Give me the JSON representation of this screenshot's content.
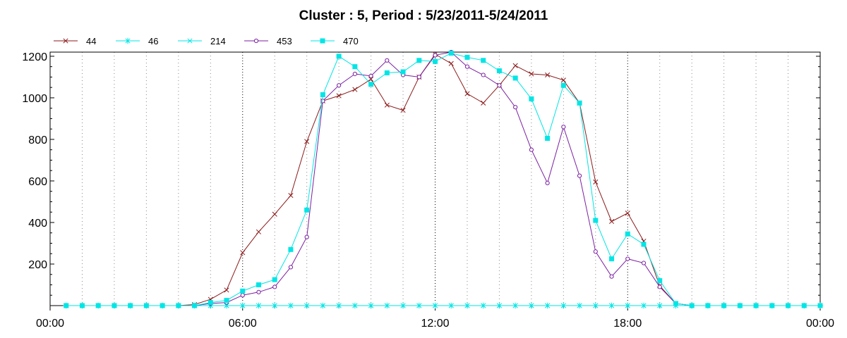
{
  "chart_data": {
    "type": "line",
    "title": "Cluster : 5, Period : 5/23/2011-5/24/2011",
    "xlabel": "",
    "ylabel": "",
    "xlim": [
      0,
      24
    ],
    "ylim": [
      0,
      1220
    ],
    "x_ticks": [
      {
        "value": 0,
        "label": "00:00"
      },
      {
        "value": 6,
        "label": "06:00"
      },
      {
        "value": 12,
        "label": "12:00"
      },
      {
        "value": 18,
        "label": "18:00"
      },
      {
        "value": 24,
        "label": "00:00"
      }
    ],
    "y_ticks": [
      200,
      400,
      600,
      800,
      1000,
      1200
    ],
    "grid": "vertical dotted lines",
    "legend_position": "top-left",
    "series": [
      {
        "name": "44",
        "color": "#8b1a1a",
        "marker": "x",
        "x": [
          0.5,
          1,
          1.5,
          2,
          2.5,
          3,
          3.5,
          4,
          4.5,
          5,
          5.5,
          6,
          6.5,
          7,
          7.5,
          8,
          8.5,
          9,
          9.5,
          10,
          10.5,
          11,
          11.5,
          12,
          12.5,
          13,
          13.5,
          14,
          14.5,
          15,
          15.5,
          16,
          16.5,
          17,
          17.5,
          18,
          18.5,
          19,
          19.5,
          20,
          20.5,
          21,
          21.5,
          22,
          22.5,
          23,
          23.5,
          24
        ],
        "y": [
          0,
          0,
          0,
          0,
          0,
          0,
          0,
          0,
          5,
          30,
          75,
          255,
          355,
          440,
          530,
          790,
          985,
          1010,
          1040,
          1090,
          965,
          940,
          1100,
          1210,
          1165,
          1020,
          975,
          1060,
          1155,
          1115,
          1110,
          1085,
          975,
          595,
          405,
          445,
          310,
          95,
          10,
          0,
          0,
          0,
          0,
          0,
          0,
          0,
          0,
          0
        ]
      },
      {
        "name": "46",
        "color": "#00e5e5",
        "marker": "star",
        "x": [
          0.5,
          1,
          1.5,
          2,
          2.5,
          3,
          3.5,
          4,
          4.5,
          5,
          5.5,
          6,
          6.5,
          7,
          7.5,
          8,
          8.5,
          9,
          9.5,
          10,
          10.5,
          11,
          11.5,
          12,
          12.5,
          13,
          13.5,
          14,
          14.5,
          15,
          15.5,
          16,
          16.5,
          17,
          17.5,
          18,
          18.5,
          19,
          19.5,
          20,
          20.5,
          21,
          21.5,
          22,
          22.5,
          23,
          23.5,
          24
        ],
        "y": [
          0,
          0,
          0,
          0,
          0,
          0,
          0,
          0,
          0,
          0,
          0,
          0,
          0,
          0,
          0,
          0,
          0,
          0,
          0,
          0,
          0,
          0,
          0,
          0,
          0,
          0,
          0,
          0,
          0,
          0,
          0,
          0,
          0,
          0,
          0,
          0,
          0,
          0,
          0,
          0,
          0,
          0,
          0,
          0,
          0,
          0,
          0,
          0
        ]
      },
      {
        "name": "214",
        "color": "#00e5e5",
        "marker": "x",
        "x": [
          0.5,
          1,
          1.5,
          2,
          2.5,
          3,
          3.5,
          4,
          4.5,
          5,
          5.5,
          6,
          6.5,
          7,
          7.5,
          8,
          8.5,
          9,
          9.5,
          10,
          10.5,
          11,
          11.5,
          12,
          12.5,
          13,
          13.5,
          14,
          14.5,
          15,
          15.5,
          16,
          16.5,
          17,
          17.5,
          18,
          18.5,
          19,
          19.5,
          20,
          20.5,
          21,
          21.5,
          22,
          22.5,
          23,
          23.5,
          24
        ],
        "y": [
          0,
          0,
          0,
          0,
          0,
          0,
          0,
          0,
          0,
          0,
          0,
          0,
          0,
          0,
          0,
          0,
          0,
          0,
          0,
          0,
          0,
          0,
          0,
          0,
          0,
          0,
          0,
          0,
          0,
          0,
          0,
          0,
          0,
          0,
          0,
          0,
          0,
          0,
          0,
          0,
          0,
          0,
          0,
          0,
          0,
          0,
          0,
          0
        ]
      },
      {
        "name": "453",
        "color": "#7b1fa2",
        "marker": "circle",
        "x": [
          0.5,
          1,
          1.5,
          2,
          2.5,
          3,
          3.5,
          4,
          4.5,
          5,
          5.5,
          6,
          6.5,
          7,
          7.5,
          8,
          8.5,
          9,
          9.5,
          10,
          10.5,
          11,
          11.5,
          12,
          12.5,
          13,
          13.5,
          14,
          14.5,
          15,
          15.5,
          16,
          16.5,
          17,
          17.5,
          18,
          18.5,
          19,
          19.5,
          20,
          20.5,
          21,
          21.5,
          22,
          22.5,
          23,
          23.5,
          24
        ],
        "y": [
          0,
          0,
          0,
          0,
          0,
          0,
          0,
          0,
          0,
          10,
          15,
          50,
          65,
          90,
          185,
          330,
          985,
          1060,
          1115,
          1105,
          1180,
          1110,
          1100,
          1205,
          1220,
          1150,
          1110,
          1060,
          955,
          750,
          590,
          860,
          625,
          260,
          140,
          225,
          205,
          90,
          10,
          0,
          0,
          0,
          0,
          0,
          0,
          0,
          0,
          0
        ]
      },
      {
        "name": "470",
        "color": "#00e5e5",
        "marker": "square",
        "x": [
          0.5,
          1,
          1.5,
          2,
          2.5,
          3,
          3.5,
          4,
          4.5,
          5,
          5.5,
          6,
          6.5,
          7,
          7.5,
          8,
          8.5,
          9,
          9.5,
          10,
          10.5,
          11,
          11.5,
          12,
          12.5,
          13,
          13.5,
          14,
          14.5,
          15,
          15.5,
          16,
          16.5,
          17,
          17.5,
          18,
          18.5,
          19,
          19.5,
          20,
          20.5,
          21,
          21.5,
          22,
          22.5,
          23,
          23.5,
          24
        ],
        "y": [
          0,
          0,
          0,
          0,
          0,
          0,
          0,
          0,
          0,
          15,
          25,
          70,
          100,
          125,
          270,
          460,
          1015,
          1200,
          1150,
          1065,
          1120,
          1125,
          1180,
          1175,
          1215,
          1195,
          1180,
          1130,
          1095,
          995,
          805,
          1060,
          975,
          410,
          225,
          345,
          295,
          120,
          10,
          0,
          0,
          0,
          0,
          0,
          0,
          0,
          0,
          0
        ]
      }
    ]
  }
}
